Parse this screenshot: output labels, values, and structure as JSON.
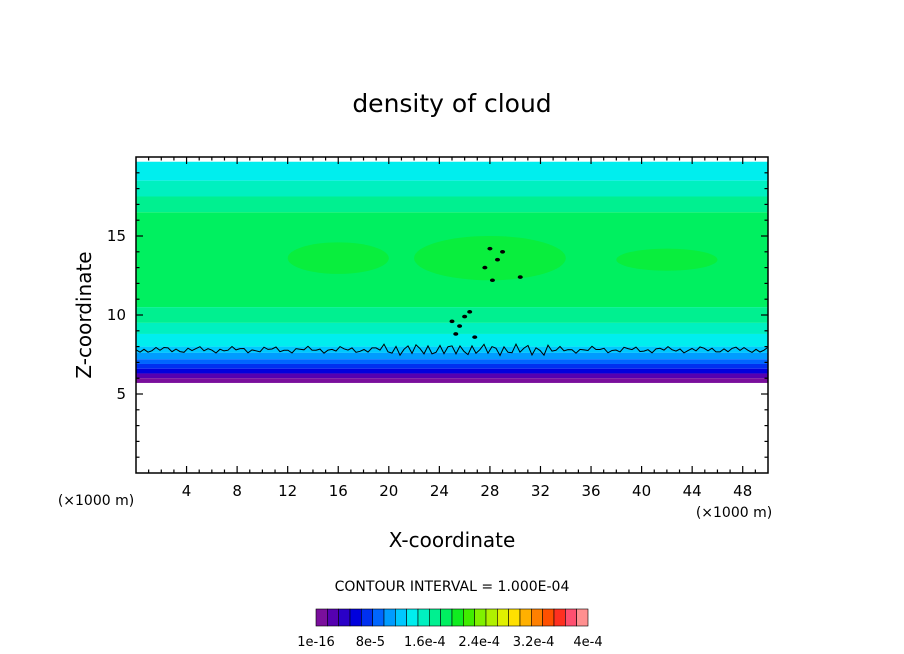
{
  "chart_data": {
    "type": "heatmap",
    "title": "density of cloud",
    "xlabel": "X-coordinate",
    "ylabel": "Z-coordinate",
    "x_unit": "(×1000 m)",
    "y_unit": "(×1000 m)",
    "xlim": [
      0,
      50
    ],
    "ylim": [
      0,
      20
    ],
    "x_ticks": [
      4,
      8,
      12,
      16,
      20,
      24,
      28,
      32,
      36,
      40,
      44,
      48
    ],
    "y_ticks": [
      5,
      10,
      15
    ],
    "contour_interval_text": "CONTOUR INTERVAL = 1.000E-04",
    "colorbar": {
      "labels": [
        "1e-16",
        "8e-5",
        "1.6e-4",
        "2.4e-4",
        "3.2e-4",
        "4e-4"
      ],
      "colors": [
        "#7a0f9c",
        "#5500b0",
        "#2a00c8",
        "#0000dd",
        "#0030f0",
        "#0066ff",
        "#009cff",
        "#00c8ff",
        "#00eeee",
        "#00f0c0",
        "#00f090",
        "#00f060",
        "#10ec20",
        "#40ec00",
        "#80f000",
        "#b0f000",
        "#e0f000",
        "#ffe000",
        "#ffb000",
        "#ff8000",
        "#ff5000",
        "#ff3020",
        "#ff5070",
        "#ff9090"
      ]
    },
    "layers": [
      {
        "z": [
          18.5,
          19.7
        ],
        "color": "#00eeee"
      },
      {
        "z": [
          17.5,
          18.5
        ],
        "color": "#00f0c0"
      },
      {
        "z": [
          16.5,
          17.5
        ],
        "color": "#00f090"
      },
      {
        "z": [
          10.5,
          16.5
        ],
        "color": "#00f060"
      },
      {
        "z": [
          9.5,
          10.5
        ],
        "color": "#00f090"
      },
      {
        "z": [
          8.8,
          9.5
        ],
        "color": "#00f0c0"
      },
      {
        "z": [
          8.0,
          8.8
        ],
        "color": "#00eeee"
      },
      {
        "z": [
          7.6,
          8.0
        ],
        "color": "#00c8ff"
      },
      {
        "z": [
          7.2,
          7.6
        ],
        "color": "#009cff"
      },
      {
        "z": [
          6.9,
          7.2
        ],
        "color": "#0066ff"
      },
      {
        "z": [
          6.6,
          6.9
        ],
        "color": "#0030f0"
      },
      {
        "z": [
          6.3,
          6.6
        ],
        "color": "#0000dd"
      },
      {
        "z": [
          6.0,
          6.3
        ],
        "color": "#5500b0"
      },
      {
        "z": [
          5.7,
          6.0
        ],
        "color": "#7a0f9c"
      }
    ],
    "core": [
      {
        "x": [
          12,
          20
        ],
        "z": [
          12.6,
          14.6
        ]
      },
      {
        "x": [
          22,
          34
        ],
        "z": [
          12.2,
          15.0
        ]
      },
      {
        "x": [
          38,
          46
        ],
        "z": [
          12.8,
          14.2
        ]
      }
    ],
    "contour_z": 7.8
  }
}
